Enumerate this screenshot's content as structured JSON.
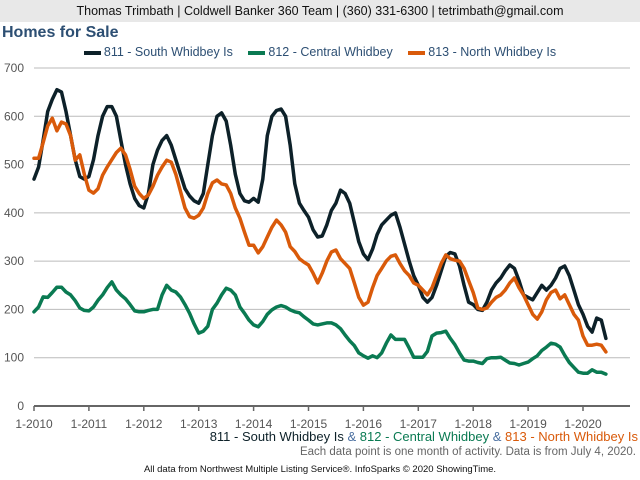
{
  "header": {
    "contact": "Thomas Trimbath | Coldwell Banker 360 Team | (360) 331-6300 | tetrimbath@gmail.com"
  },
  "footer": {
    "note": "Each data point is one month of activity. Data is from July 4, 2020.",
    "source": "All data from Northwest Multiple Listing Service®. InfoSparks © 2020 ShowingTime.",
    "ampersand": "&"
  },
  "chart_data": {
    "type": "line",
    "title": "Homes for Sale",
    "x_start": "2010-01",
    "frequency": "monthly",
    "xticks": [
      "1-2010",
      "1-2011",
      "1-2012",
      "1-2013",
      "1-2014",
      "1-2015",
      "1-2016",
      "1-2017",
      "1-2018",
      "1-2019",
      "1-2020"
    ],
    "yticks": [
      0,
      100,
      200,
      300,
      400,
      500,
      600,
      700
    ],
    "ylim": [
      0,
      700
    ],
    "grid": "horizontal",
    "legend": "top",
    "series": [
      {
        "name": "811 - South Whidbey Is",
        "color": "#0d2129",
        "values": [
          470,
          495,
          550,
          610,
          635,
          655,
          650,
          610,
          560,
          510,
          475,
          470,
          475,
          510,
          560,
          600,
          620,
          620,
          600,
          550,
          500,
          460,
          430,
          415,
          410,
          440,
          500,
          530,
          550,
          560,
          540,
          510,
          480,
          450,
          435,
          425,
          420,
          440,
          500,
          560,
          600,
          607,
          590,
          540,
          480,
          440,
          425,
          422,
          430,
          422,
          470,
          560,
          600,
          612,
          615,
          600,
          540,
          460,
          420,
          405,
          391,
          365,
          350,
          352,
          375,
          405,
          420,
          447,
          440,
          420,
          380,
          340,
          315,
          303,
          325,
          355,
          375,
          385,
          395,
          400,
          370,
          335,
          300,
          270,
          250,
          225,
          215,
          225,
          250,
          280,
          310,
          318,
          315,
          290,
          250,
          215,
          210,
          200,
          198,
          215,
          240,
          255,
          265,
          280,
          292,
          285,
          260,
          230,
          225,
          220,
          235,
          250,
          240,
          250,
          265,
          285,
          290,
          270,
          240,
          210,
          190,
          165,
          153,
          182,
          178,
          140
        ]
      },
      {
        "name": "812 - Central Whidbey",
        "color": "#0a7a52",
        "values": [
          195,
          205,
          226,
          225,
          235,
          246,
          246,
          236,
          230,
          218,
          203,
          198,
          197,
          205,
          219,
          230,
          245,
          257,
          240,
          230,
          222,
          210,
          197,
          195,
          195,
          198,
          200,
          200,
          230,
          250,
          240,
          236,
          226,
          210,
          192,
          170,
          151,
          155,
          165,
          200,
          213,
          230,
          244,
          240,
          230,
          205,
          192,
          178,
          168,
          164,
          175,
          190,
          199,
          205,
          208,
          205,
          199,
          195,
          193,
          185,
          178,
          170,
          168,
          170,
          172,
          172,
          168,
          160,
          147,
          135,
          125,
          110,
          104,
          99,
          104,
          100,
          110,
          130,
          147,
          138,
          138,
          138,
          120,
          101,
          101,
          101,
          113,
          145,
          151,
          152,
          155,
          140,
          127,
          110,
          95,
          93,
          93,
          90,
          88,
          98,
          100,
          100,
          101,
          95,
          89,
          88,
          85,
          88,
          91,
          98,
          104,
          115,
          122,
          130,
          128,
          122,
          105,
          90,
          80,
          70,
          68,
          68,
          75,
          70,
          70,
          66
        ]
      },
      {
        "name": "813 - North Whidbey Is",
        "color": "#d95a0a",
        "values": [
          513,
          513,
          545,
          580,
          596,
          570,
          588,
          584,
          560,
          509,
          520,
          480,
          447,
          441,
          450,
          478,
          495,
          510,
          525,
          534,
          520,
          490,
          455,
          440,
          430,
          437,
          455,
          478,
          495,
          509,
          505,
          480,
          445,
          410,
          392,
          389,
          395,
          410,
          440,
          462,
          468,
          460,
          458,
          440,
          410,
          389,
          360,
          333,
          333,
          317,
          330,
          350,
          370,
          385,
          375,
          360,
          330,
          320,
          305,
          298,
          292,
          275,
          255,
          275,
          300,
          319,
          323,
          305,
          295,
          285,
          255,
          225,
          209,
          215,
          245,
          270,
          285,
          300,
          310,
          313,
          295,
          280,
          270,
          255,
          250,
          240,
          230,
          245,
          270,
          295,
          313,
          305,
          302,
          300,
          285,
          260,
          235,
          203,
          200,
          203,
          215,
          225,
          230,
          240,
          255,
          265,
          245,
          230,
          210,
          190,
          180,
          195,
          220,
          235,
          240,
          222,
          230,
          210,
          190,
          178,
          145,
          126,
          126,
          128,
          126,
          112
        ]
      }
    ]
  }
}
